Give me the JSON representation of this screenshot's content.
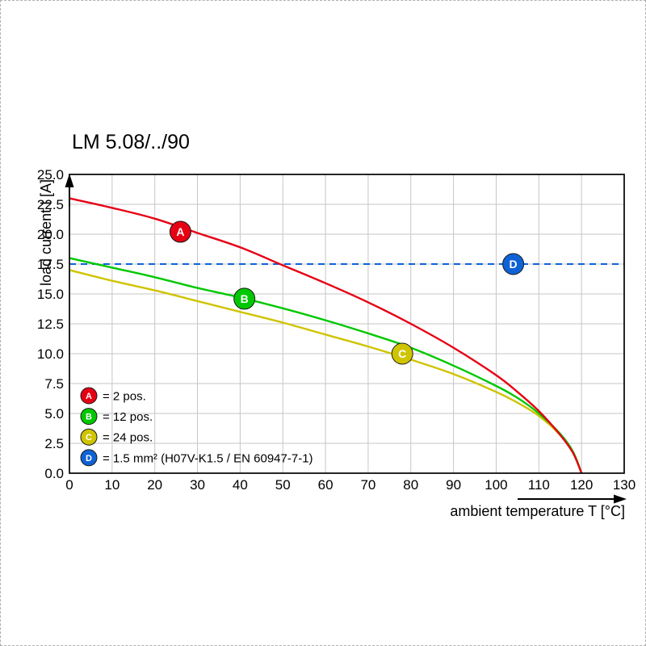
{
  "chart_data": {
    "type": "line",
    "title": "LM 5.08/../90",
    "xlabel": "ambient temperature T [°C]",
    "ylabel": "load current I [A]",
    "xlim": [
      0,
      130
    ],
    "ylim": [
      0,
      25
    ],
    "xticks": [
      0,
      10,
      20,
      30,
      40,
      50,
      60,
      70,
      80,
      90,
      100,
      110,
      120,
      130
    ],
    "yticks": [
      0,
      2.5,
      5,
      7.5,
      10,
      12.5,
      15,
      17.5,
      20,
      22.5,
      25
    ],
    "ytick_labels": [
      "0.0",
      "2.5",
      "5.0",
      "7.5",
      "10.0",
      "12.5",
      "15.0",
      "17.5",
      "20.0",
      "22.5",
      "25.0"
    ],
    "grid": true,
    "legend_position": "bottom-left",
    "series": [
      {
        "name": "A",
        "label": "= 2 pos.",
        "color": "#e60014",
        "marker": {
          "x": 26,
          "y": 20.2
        },
        "points": [
          [
            0,
            23
          ],
          [
            10,
            22.2
          ],
          [
            20,
            21.3
          ],
          [
            30,
            20.1
          ],
          [
            40,
            18.9
          ],
          [
            50,
            17.4
          ],
          [
            60,
            15.9
          ],
          [
            70,
            14.3
          ],
          [
            80,
            12.5
          ],
          [
            90,
            10.5
          ],
          [
            100,
            8.2
          ],
          [
            105,
            6.8
          ],
          [
            110,
            5.2
          ],
          [
            115,
            3.2
          ],
          [
            118,
            1.7
          ],
          [
            120,
            0
          ]
        ]
      },
      {
        "name": "B",
        "label": "= 12 pos.",
        "color": "#00c800",
        "marker": {
          "x": 41,
          "y": 14.6
        },
        "points": [
          [
            0,
            18
          ],
          [
            10,
            17.2
          ],
          [
            20,
            16.4
          ],
          [
            30,
            15.5
          ],
          [
            40,
            14.7
          ],
          [
            50,
            13.8
          ],
          [
            60,
            12.8
          ],
          [
            70,
            11.7
          ],
          [
            80,
            10.5
          ],
          [
            90,
            9
          ],
          [
            100,
            7.3
          ],
          [
            105,
            6.3
          ],
          [
            110,
            5
          ],
          [
            115,
            3.3
          ],
          [
            118,
            1.8
          ],
          [
            120,
            0
          ]
        ]
      },
      {
        "name": "C",
        "label": "= 24 pos.",
        "color": "#cfc400",
        "marker": {
          "x": 78,
          "y": 10
        },
        "points": [
          [
            0,
            17
          ],
          [
            10,
            16.1
          ],
          [
            20,
            15.3
          ],
          [
            30,
            14.4
          ],
          [
            40,
            13.5
          ],
          [
            50,
            12.6
          ],
          [
            60,
            11.6
          ],
          [
            70,
            10.6
          ],
          [
            80,
            9.5
          ],
          [
            90,
            8.3
          ],
          [
            100,
            6.8
          ],
          [
            105,
            5.9
          ],
          [
            110,
            4.8
          ],
          [
            115,
            3.2
          ],
          [
            118,
            1.8
          ],
          [
            120,
            0
          ]
        ]
      }
    ],
    "reference_line": {
      "name": "D",
      "label": "= 1.5 mm² (H07V-K1.5 / EN 60947-7-1)",
      "color": "#0f62d6",
      "style": "dashed",
      "y": 17.5,
      "marker": {
        "x": 104,
        "y": 17.5
      }
    }
  }
}
